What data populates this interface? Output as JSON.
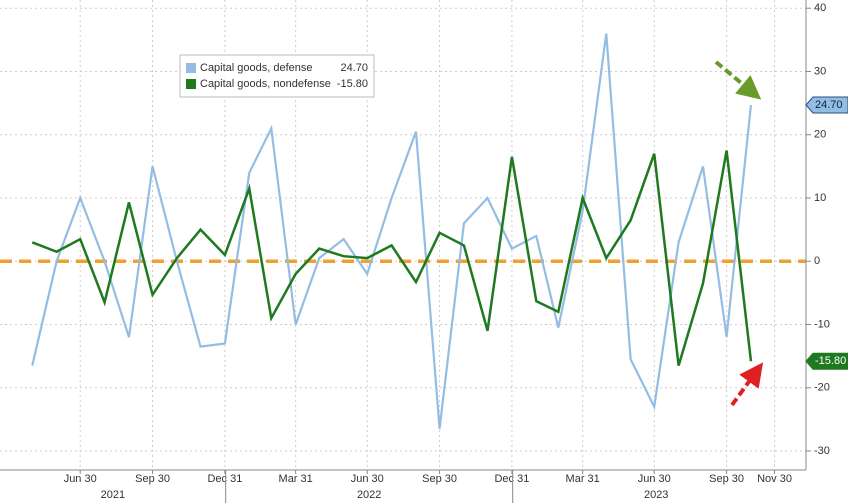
{
  "chart_data": {
    "type": "line",
    "x": [
      "2021-04-30",
      "2021-05-31",
      "2021-06-30",
      "2021-07-31",
      "2021-08-31",
      "2021-09-30",
      "2021-10-31",
      "2021-11-30",
      "2021-12-31",
      "2022-01-31",
      "2022-02-28",
      "2022-03-31",
      "2022-04-30",
      "2022-05-31",
      "2022-06-30",
      "2022-07-31",
      "2022-08-31",
      "2022-09-30",
      "2022-10-31",
      "2022-11-30",
      "2022-12-31",
      "2023-01-31",
      "2023-02-28",
      "2023-03-31",
      "2023-04-30",
      "2023-05-31",
      "2023-06-30",
      "2023-07-31",
      "2023-08-31",
      "2023-09-30",
      "2023-10-31"
    ],
    "series": [
      {
        "name": "Capital goods, defense",
        "color": "#93bde3",
        "values": [
          -16.5,
          0,
          10,
          0,
          -12,
          15,
          0,
          -13.5,
          -13,
          14,
          21,
          -10,
          0.5,
          3.5,
          -2,
          10,
          20.5,
          -26.5,
          6,
          10,
          2,
          4,
          -10.5,
          8,
          36,
          -15.5,
          -23,
          3,
          15,
          -12,
          24.7
        ],
        "value_labels": [
          null,
          null,
          null,
          null,
          null,
          null,
          null,
          null,
          null,
          null,
          null,
          null,
          null,
          null,
          null,
          null,
          null,
          null,
          null,
          null,
          null,
          null,
          null,
          null,
          null,
          null,
          null,
          null,
          null,
          null,
          "24.70"
        ]
      },
      {
        "name": "Capital goods, nondefense",
        "color": "#1f7a1f",
        "values": [
          3,
          1.5,
          3.5,
          -6.5,
          9.3,
          -5.3,
          0.5,
          5,
          1,
          11.5,
          -9,
          -2,
          2,
          0.8,
          0.5,
          2.5,
          -3.3,
          4.5,
          2.5,
          -11,
          16.5,
          -6.3,
          -8,
          10,
          0.5,
          6.5,
          17,
          -16.5,
          -3.5,
          17.5,
          -15.8
        ],
        "value_labels": [
          null,
          null,
          null,
          null,
          null,
          null,
          null,
          null,
          null,
          null,
          null,
          null,
          null,
          null,
          null,
          null,
          null,
          null,
          null,
          null,
          null,
          null,
          null,
          null,
          null,
          null,
          null,
          null,
          null,
          null,
          "-15.80"
        ]
      }
    ],
    "xlim": [
      "2021-03-20",
      "2024-01-09"
    ],
    "xticks": [
      {
        "value": "2021-06-30",
        "label": "Jun 30"
      },
      {
        "value": "2021-09-30",
        "label": "Sep 30"
      },
      {
        "value": "2021-12-31",
        "label": "Dec 31"
      },
      {
        "value": "2022-03-31",
        "label": "Mar 31"
      },
      {
        "value": "2022-06-30",
        "label": "Jun 30"
      },
      {
        "value": "2022-09-30",
        "label": "Sep 30"
      },
      {
        "value": "2022-12-31",
        "label": "Dec 31"
      },
      {
        "value": "2023-03-31",
        "label": "Mar 31"
      },
      {
        "value": "2023-06-30",
        "label": "Jun 30"
      },
      {
        "value": "2023-09-30",
        "label": "Sep 30"
      },
      {
        "value": "2023-11-30",
        "label": "Nov 30"
      }
    ],
    "years": [
      "2021",
      "2022",
      "2023"
    ],
    "ylim": [
      -33,
      41.3
    ],
    "yticks": [
      -30,
      -20,
      -10,
      0,
      10,
      20,
      30,
      40
    ],
    "hline": 0,
    "hline_color": "#f0a030",
    "grid": true
  }
}
